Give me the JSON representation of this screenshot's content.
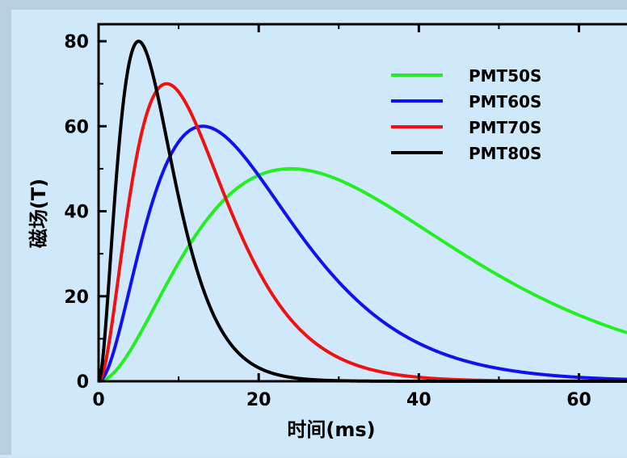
{
  "chart_data": {
    "type": "line",
    "xlabel": "时间(ms)",
    "ylabel": "磁场(T)",
    "xlim": [
      0,
      66
    ],
    "ylim": [
      0,
      84
    ],
    "xticks": [
      0,
      20,
      40,
      60
    ],
    "yticks": [
      0,
      20,
      40,
      60,
      80
    ],
    "grid": false,
    "legend_position": "top-right",
    "series": [
      {
        "name": "PMT50S",
        "color": "#22ee22",
        "peak_time": 24,
        "peak_value": 50
      },
      {
        "name": "PMT60S",
        "color": "#1010f0",
        "peak_time": 13,
        "peak_value": 60
      },
      {
        "name": "PMT70S",
        "color": "#f01010",
        "peak_time": 8.5,
        "peak_value": 70
      },
      {
        "name": "PMT80S",
        "color": "#000000",
        "peak_time": 5,
        "peak_value": 80
      }
    ]
  }
}
